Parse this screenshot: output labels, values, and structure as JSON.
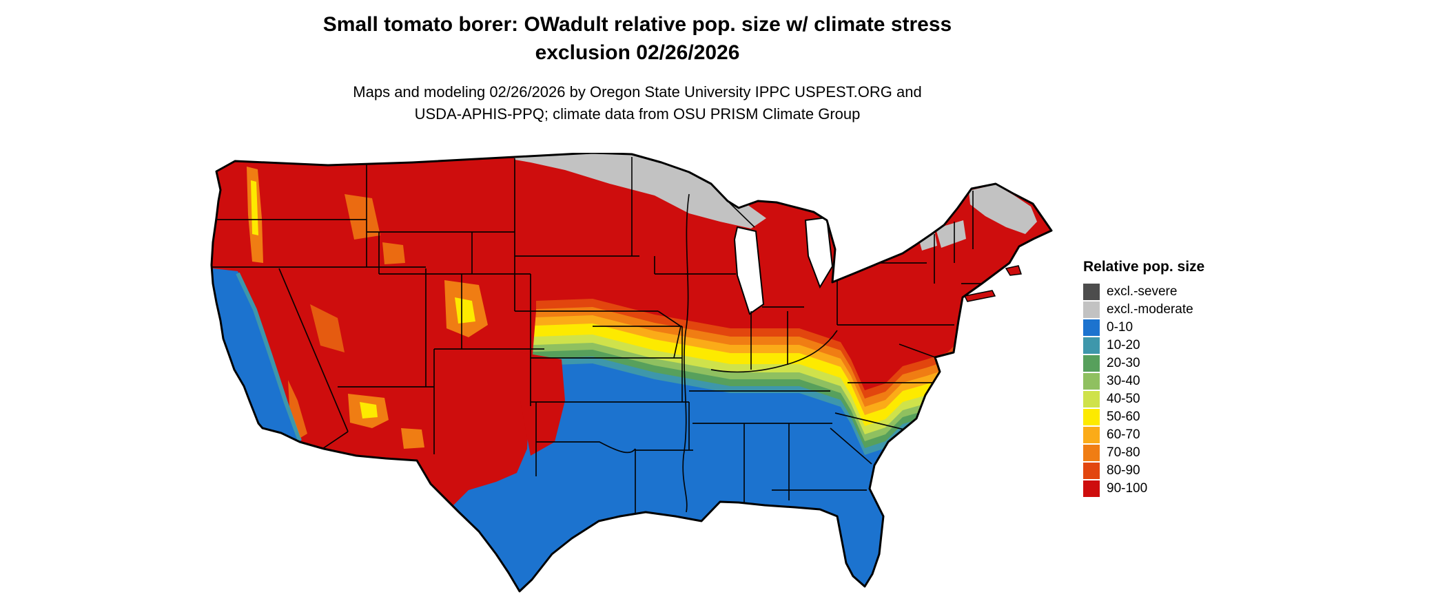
{
  "header": {
    "title_line1": "Small tomato borer: OWadult relative pop. size w/ climate stress",
    "title_line2": "exclusion 02/26/2026",
    "subtitle_line1": "Maps and modeling 02/26/2026 by Oregon State University IPPC USPEST.ORG and",
    "subtitle_line2": "USDA-APHIS-PPQ; climate data from OSU PRISM Climate Group"
  },
  "legend": {
    "title": "Relative pop. size",
    "items": [
      {
        "label": "excl.-severe",
        "color": "#4d4d4d"
      },
      {
        "label": "excl.-moderate",
        "color": "#c2c2c2"
      },
      {
        "label": "0-10",
        "color": "#1c73cf"
      },
      {
        "label": "10-20",
        "color": "#3e97ab"
      },
      {
        "label": "20-30",
        "color": "#57a05c"
      },
      {
        "label": "30-40",
        "color": "#8fc060"
      },
      {
        "label": "40-50",
        "color": "#cfe24b"
      },
      {
        "label": "50-60",
        "color": "#fdea00"
      },
      {
        "label": "60-70",
        "color": "#fbab18"
      },
      {
        "label": "70-80",
        "color": "#f07d13"
      },
      {
        "label": "80-90",
        "color": "#e2460e"
      },
      {
        "label": "90-100",
        "color": "#ce0d0d"
      }
    ]
  }
}
